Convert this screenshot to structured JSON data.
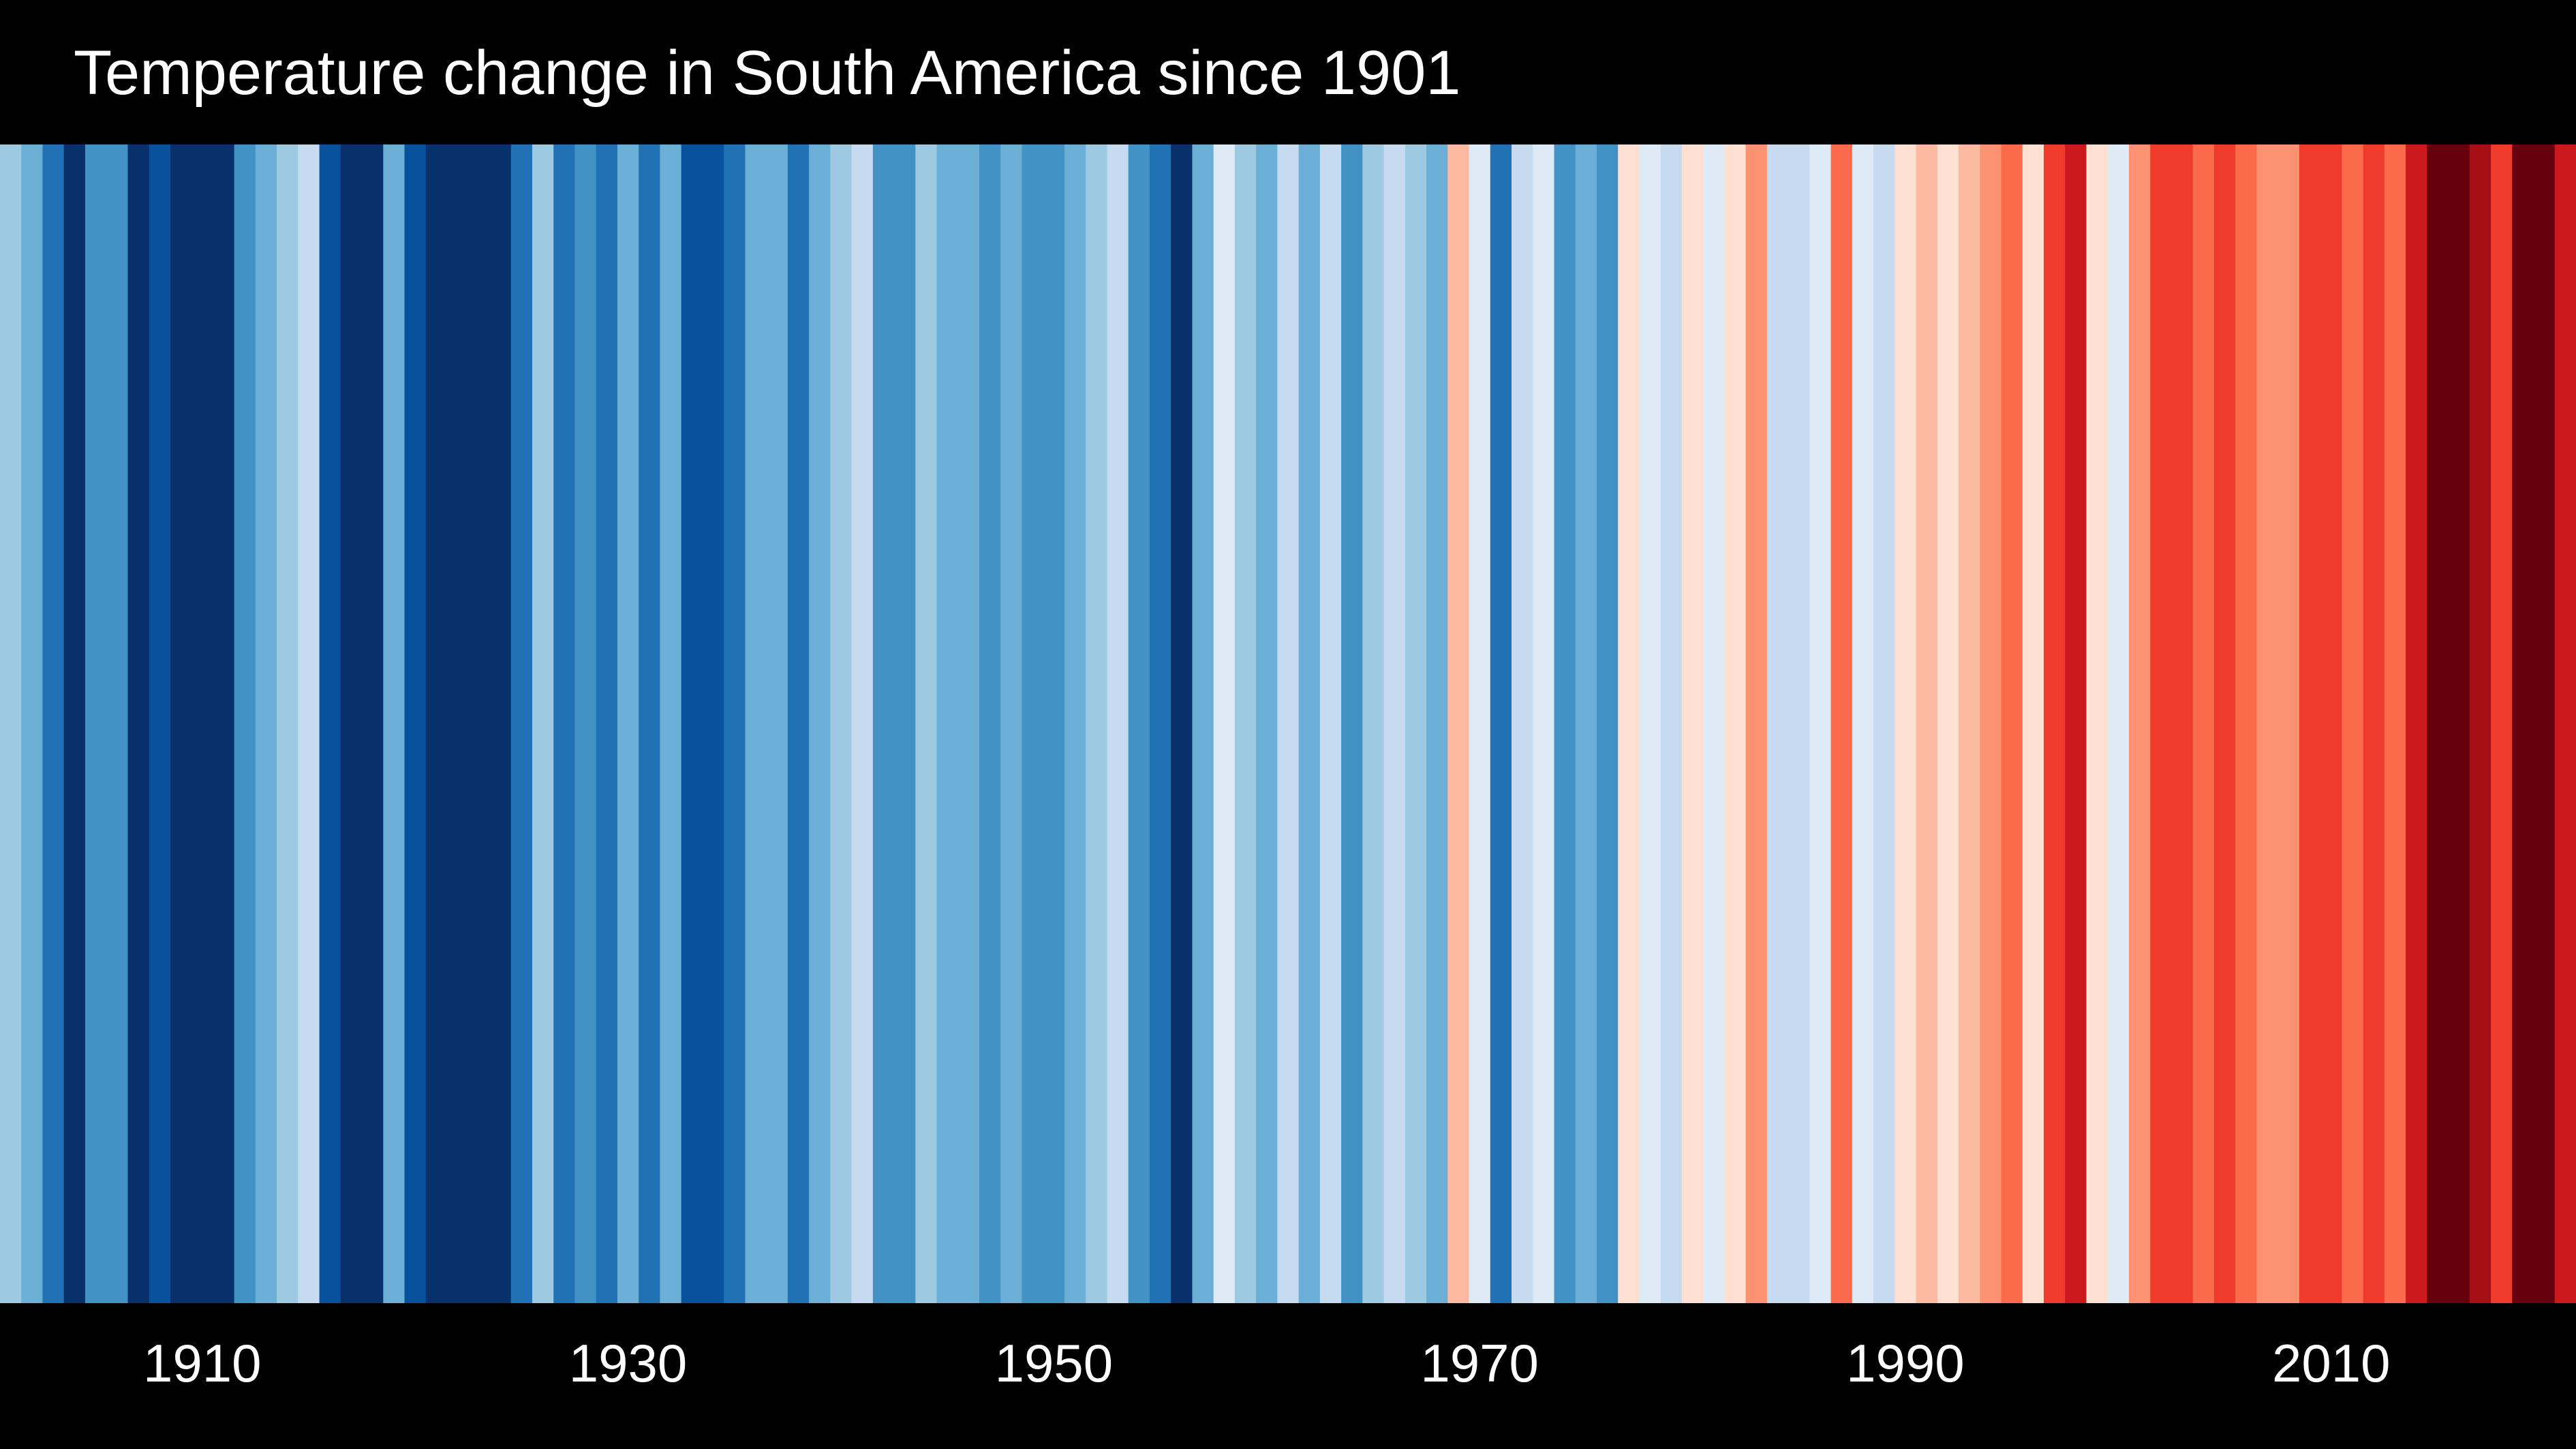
{
  "chart_data": {
    "type": "heatmap",
    "title": "Temperature change in South America since 1901",
    "xlabel": "",
    "ylabel": "",
    "x_range": [
      1901,
      2021
    ],
    "x_ticks": [
      1910,
      1930,
      1950,
      1970,
      1990,
      2010
    ],
    "grid": false,
    "legend": "none",
    "palette": {
      "B8": "#08306b",
      "B7": "#08519c",
      "B6": "#2171b5",
      "B5": "#4292c6",
      "B4": "#6baed6",
      "B3": "#9ecae1",
      "B2": "#c6dbef",
      "B1": "#deebf7",
      "R1": "#fee0d2",
      "R2": "#fcbba1",
      "R3": "#fc9272",
      "R4": "#fb6a4a",
      "R5": "#ef3b2c",
      "R6": "#cb181d",
      "R7": "#a50f15",
      "R8": "#67000d"
    },
    "years": [
      1901,
      1902,
      1903,
      1904,
      1905,
      1906,
      1907,
      1908,
      1909,
      1910,
      1911,
      1912,
      1913,
      1914,
      1915,
      1916,
      1917,
      1918,
      1919,
      1920,
      1921,
      1922,
      1923,
      1924,
      1925,
      1926,
      1927,
      1928,
      1929,
      1930,
      1931,
      1932,
      1933,
      1934,
      1935,
      1936,
      1937,
      1938,
      1939,
      1940,
      1941,
      1942,
      1943,
      1944,
      1945,
      1946,
      1947,
      1948,
      1949,
      1950,
      1951,
      1952,
      1953,
      1954,
      1955,
      1956,
      1957,
      1958,
      1959,
      1960,
      1961,
      1962,
      1963,
      1964,
      1965,
      1966,
      1967,
      1968,
      1969,
      1970,
      1971,
      1972,
      1973,
      1974,
      1975,
      1976,
      1977,
      1978,
      1979,
      1980,
      1981,
      1982,
      1983,
      1984,
      1985,
      1986,
      1987,
      1988,
      1989,
      1990,
      1991,
      1992,
      1993,
      1994,
      1995,
      1996,
      1997,
      1998,
      1999,
      2000,
      2001,
      2002,
      2003,
      2004,
      2005,
      2006,
      2007,
      2008,
      2009,
      2010,
      2011,
      2012,
      2013,
      2014,
      2015,
      2016,
      2017,
      2018,
      2019,
      2020,
      2021
    ],
    "levels": [
      "B3",
      "B4",
      "B6",
      "B8",
      "B5",
      "B5",
      "B8",
      "B7",
      "B8",
      "B8",
      "B8",
      "B5",
      "B4",
      "B3",
      "B2",
      "B7",
      "B8",
      "B8",
      "B4",
      "B7",
      "B8",
      "B8",
      "B8",
      "B8",
      "B6",
      "B3",
      "B6",
      "B5",
      "B6",
      "B4",
      "B6",
      "B4",
      "B7",
      "B7",
      "B6",
      "B4",
      "B4",
      "B6",
      "B4",
      "B3",
      "B2",
      "B5",
      "B5",
      "B3",
      "B4",
      "B4",
      "B5",
      "B4",
      "B5",
      "B5",
      "B4",
      "B3",
      "B2",
      "B5",
      "B6",
      "B8",
      "B4",
      "B1",
      "B3",
      "B4",
      "B2",
      "B4",
      "B2",
      "B5",
      "B3",
      "B2",
      "B3",
      "B4",
      "R2",
      "B1",
      "B6",
      "B2",
      "B1",
      "B5",
      "B4",
      "B5",
      "R1",
      "B1",
      "B2",
      "R1",
      "B1",
      "R1",
      "R3",
      "B2",
      "B2",
      "B1",
      "R4",
      "B1",
      "B2",
      "R1",
      "R2",
      "R1",
      "R2",
      "R3",
      "R4",
      "R1",
      "R5",
      "R6",
      "R1",
      "B1",
      "R3",
      "R5",
      "R5",
      "R4",
      "R5",
      "R4",
      "R3",
      "R3",
      "R5",
      "R5",
      "R4",
      "R5",
      "R4",
      "R6",
      "R8",
      "R8",
      "R7",
      "R5",
      "R8",
      "R8",
      "R6"
    ]
  }
}
